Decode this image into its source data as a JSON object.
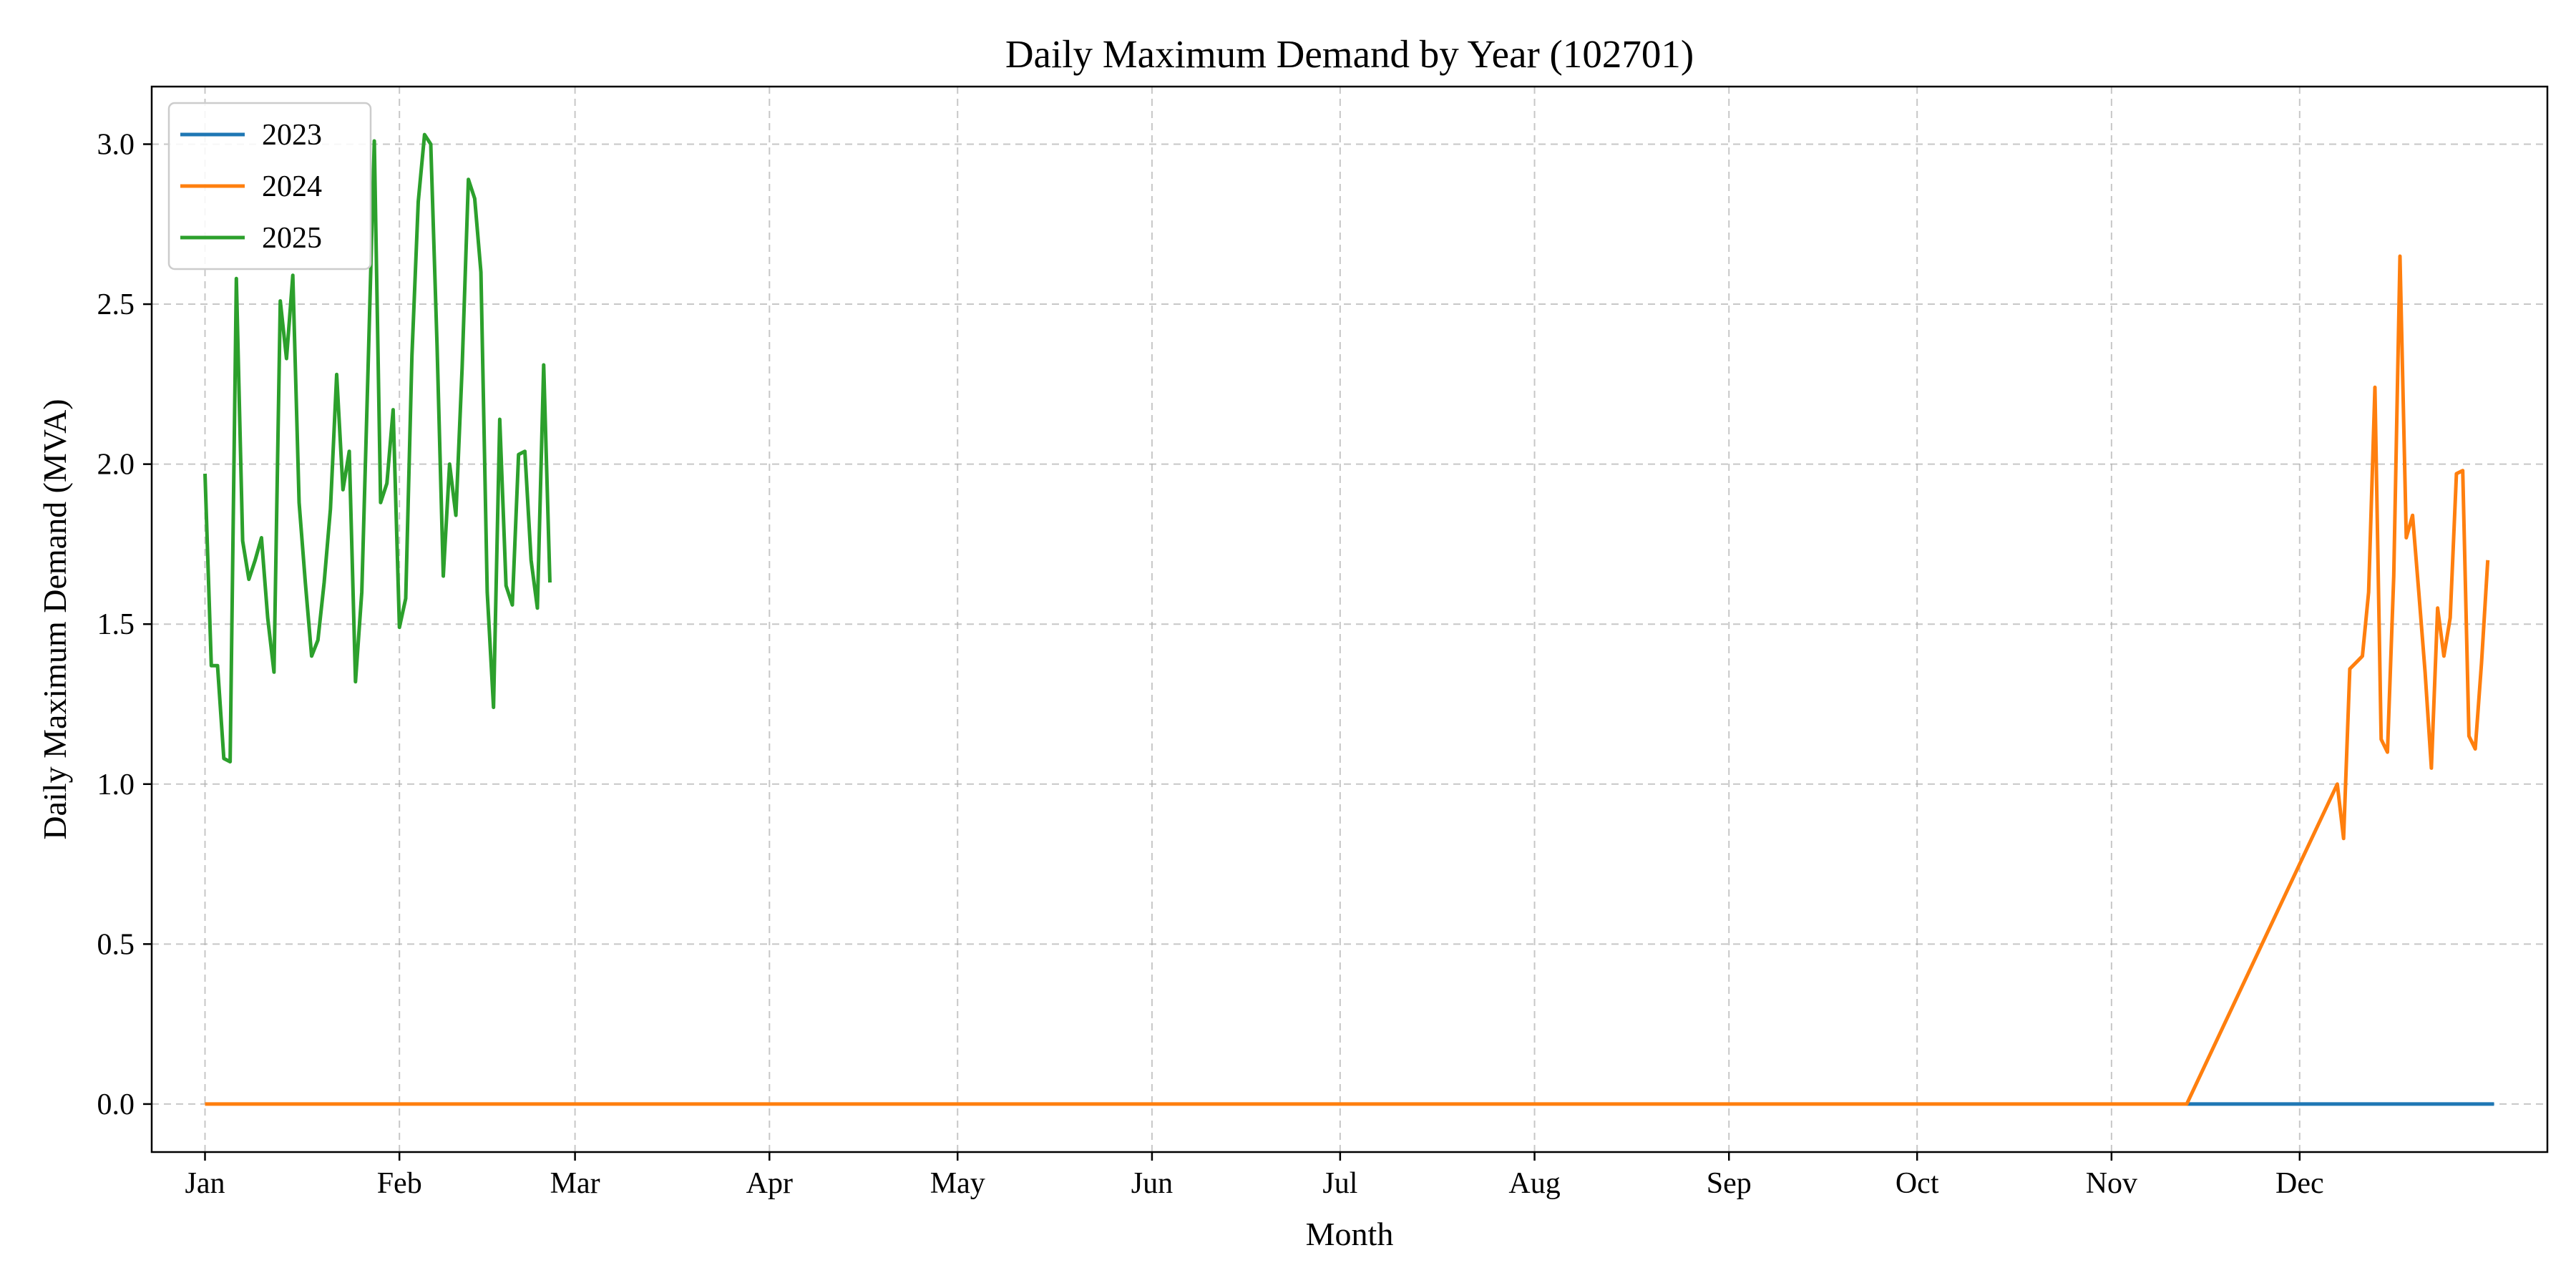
{
  "chart_data": {
    "type": "line",
    "title": "Daily Maximum Demand by Year (102701)",
    "xlabel": "Month",
    "ylabel": "Daily Maximum Demand (MVA)",
    "x_unit": "day of year",
    "xlim": [
      -8.5,
      373.5
    ],
    "ylim": [
      -0.15,
      3.18
    ],
    "grid": true,
    "legend_position": "top-left",
    "x_ticks": [
      {
        "label": "Jan",
        "value": 0
      },
      {
        "label": "Feb",
        "value": 31
      },
      {
        "label": "Mar",
        "value": 59
      },
      {
        "label": "Apr",
        "value": 90
      },
      {
        "label": "May",
        "value": 120
      },
      {
        "label": "Jun",
        "value": 151
      },
      {
        "label": "Jul",
        "value": 181
      },
      {
        "label": "Aug",
        "value": 212
      },
      {
        "label": "Sep",
        "value": 243
      },
      {
        "label": "Oct",
        "value": 273
      },
      {
        "label": "Nov",
        "value": 304
      },
      {
        "label": "Dec",
        "value": 334
      }
    ],
    "y_ticks": [
      {
        "label": "0.0",
        "value": 0.0
      },
      {
        "label": "0.5",
        "value": 0.5
      },
      {
        "label": "1.0",
        "value": 1.0
      },
      {
        "label": "1.5",
        "value": 1.5
      },
      {
        "label": "2.0",
        "value": 2.0
      },
      {
        "label": "2.5",
        "value": 2.5
      },
      {
        "label": "3.0",
        "value": 3.0
      }
    ],
    "series": [
      {
        "name": "2023",
        "color": "#1f77b4",
        "points": [
          [
            316,
            0.0
          ],
          [
            365,
            0.0
          ]
        ]
      },
      {
        "name": "2024",
        "color": "#ff7f0e",
        "points": [
          [
            0,
            0.0
          ],
          [
            316,
            0.0
          ],
          [
            340,
            1.0
          ],
          [
            341,
            0.83
          ],
          [
            342,
            1.36
          ],
          [
            343,
            1.38
          ],
          [
            344,
            1.4
          ],
          [
            345,
            1.6
          ],
          [
            346,
            2.24
          ],
          [
            347,
            1.14
          ],
          [
            348,
            1.1
          ],
          [
            349,
            1.65
          ],
          [
            350,
            2.65
          ],
          [
            351,
            1.77
          ],
          [
            352,
            1.84
          ],
          [
            353,
            1.6
          ],
          [
            354,
            1.35
          ],
          [
            355,
            1.05
          ],
          [
            356,
            1.55
          ],
          [
            357,
            1.4
          ],
          [
            358,
            1.52
          ],
          [
            359,
            1.97
          ],
          [
            360,
            1.98
          ],
          [
            361,
            1.15
          ],
          [
            362,
            1.11
          ],
          [
            363,
            1.38
          ],
          [
            364,
            1.7
          ]
        ]
      },
      {
        "name": "2025",
        "color": "#2ca02c",
        "points": [
          [
            0,
            1.97
          ],
          [
            1,
            1.37
          ],
          [
            2,
            1.37
          ],
          [
            3,
            1.08
          ],
          [
            4,
            1.07
          ],
          [
            5,
            2.58
          ],
          [
            6,
            1.76
          ],
          [
            7,
            1.64
          ],
          [
            8,
            1.7
          ],
          [
            9,
            1.77
          ],
          [
            10,
            1.52
          ],
          [
            11,
            1.35
          ],
          [
            12,
            2.51
          ],
          [
            13,
            2.33
          ],
          [
            14,
            2.59
          ],
          [
            15,
            1.88
          ],
          [
            16,
            1.63
          ],
          [
            17,
            1.4
          ],
          [
            18,
            1.45
          ],
          [
            19,
            1.63
          ],
          [
            20,
            1.86
          ],
          [
            21,
            2.28
          ],
          [
            22,
            1.92
          ],
          [
            23,
            2.04
          ],
          [
            24,
            1.32
          ],
          [
            25,
            1.6
          ],
          [
            26,
            2.3
          ],
          [
            27,
            3.01
          ],
          [
            28,
            1.88
          ],
          [
            29,
            1.94
          ],
          [
            30,
            2.17
          ],
          [
            31,
            1.49
          ],
          [
            32,
            1.58
          ],
          [
            33,
            2.34
          ],
          [
            34,
            2.82
          ],
          [
            35,
            3.03
          ],
          [
            36,
            3.0
          ],
          [
            37,
            2.37
          ],
          [
            38,
            1.65
          ],
          [
            39,
            2.0
          ],
          [
            40,
            1.84
          ],
          [
            41,
            2.3
          ],
          [
            42,
            2.89
          ],
          [
            43,
            2.83
          ],
          [
            44,
            2.6
          ],
          [
            45,
            1.6
          ],
          [
            46,
            1.24
          ],
          [
            47,
            2.14
          ],
          [
            48,
            1.62
          ],
          [
            49,
            1.56
          ],
          [
            50,
            2.03
          ],
          [
            51,
            2.04
          ],
          [
            52,
            1.7
          ],
          [
            53,
            1.55
          ],
          [
            54,
            2.31
          ],
          [
            55,
            1.63
          ]
        ]
      }
    ]
  }
}
